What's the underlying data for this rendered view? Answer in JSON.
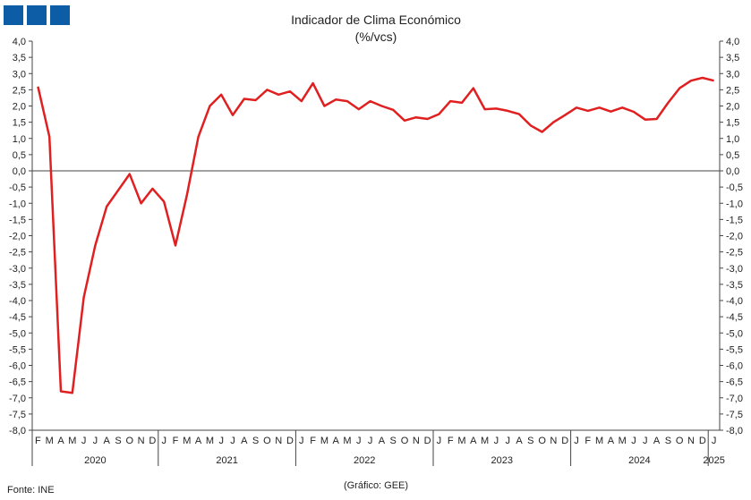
{
  "logo": {
    "color": "#0c5da5"
  },
  "footer": {
    "source": "Fonte: INE",
    "credit": "(Gráfico: GEE)"
  },
  "chart_data": {
    "type": "line",
    "title": "Indicador de Clima Económico",
    "subtitle": "(%/vcs)",
    "ylim": [
      -8.0,
      4.0
    ],
    "y_ticks": [
      "4,0",
      "3,5",
      "3,0",
      "2,5",
      "2,0",
      "1,5",
      "1,0",
      "0,5",
      "0,0",
      "-0,5",
      "-1,0",
      "-1,5",
      "-2,0",
      "-2,5",
      "-3,0",
      "-3,5",
      "-4,0",
      "-4,5",
      "-5,0",
      "-5,5",
      "-6,0",
      "-6,5",
      "-7,0",
      "-7,5",
      "-8,0"
    ],
    "grid": false,
    "line_color": "#e02020",
    "month_labels": [
      "F",
      "M",
      "A",
      "M",
      "J",
      "J",
      "A",
      "S",
      "O",
      "N",
      "D",
      "J",
      "F",
      "M",
      "A",
      "M",
      "J",
      "J",
      "A",
      "S",
      "O",
      "N",
      "D",
      "J",
      "F",
      "M",
      "A",
      "M",
      "J",
      "J",
      "A",
      "S",
      "O",
      "N",
      "D",
      "J",
      "F",
      "M",
      "A",
      "M",
      "J",
      "J",
      "A",
      "S",
      "O",
      "N",
      "D",
      "J",
      "F",
      "M",
      "A",
      "M",
      "J",
      "J",
      "A",
      "S",
      "O",
      "N",
      "D",
      "J"
    ],
    "years": [
      {
        "label": "2020",
        "months": 11
      },
      {
        "label": "2021",
        "months": 12
      },
      {
        "label": "2022",
        "months": 12
      },
      {
        "label": "2023",
        "months": 12
      },
      {
        "label": "2024",
        "months": 12
      },
      {
        "label": "2025",
        "months": 1
      }
    ],
    "series": [
      {
        "values": [
          2.6,
          1.05,
          -6.8,
          -6.85,
          -3.9,
          -2.3,
          -1.1,
          -0.6,
          -0.1,
          -1.0,
          -0.55,
          -0.95,
          -2.3,
          -0.75,
          1.05,
          2.0,
          2.35,
          1.72,
          2.22,
          2.18,
          2.5,
          2.35,
          2.45,
          2.15,
          2.7,
          2.0,
          2.2,
          2.15,
          1.9,
          2.15,
          2.0,
          1.88,
          1.55,
          1.65,
          1.6,
          1.75,
          2.15,
          2.1,
          2.55,
          1.9,
          1.92,
          1.85,
          1.75,
          1.4,
          1.2,
          1.5,
          1.72,
          1.95,
          1.85,
          1.95,
          1.83,
          1.95,
          1.82,
          1.58,
          1.6,
          2.1,
          2.55,
          2.78,
          2.87,
          2.78
        ]
      }
    ]
  }
}
